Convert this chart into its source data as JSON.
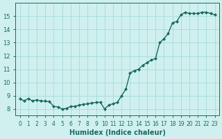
{
  "xlabel": "Humidex (Indice chaleur)",
  "ylabel": "",
  "bg_color": "#cff0ee",
  "line_color": "#1a6b5e",
  "grid_color": "#aadddd",
  "x_values": [
    0,
    0.5,
    1,
    1.5,
    2,
    2.5,
    3,
    3.5,
    4,
    4.5,
    5,
    5.5,
    6,
    6.5,
    7,
    7.5,
    8,
    8.5,
    9,
    9.5,
    10,
    10.5,
    11,
    11.5,
    12,
    12.5,
    13,
    13.5,
    14,
    14.5,
    15,
    15.5,
    16,
    16.5,
    17,
    17.5,
    18,
    18.5,
    19,
    19.5,
    20,
    20.5,
    21,
    21.5,
    22,
    22.5,
    23
  ],
  "y_values": [
    8.8,
    8.6,
    8.8,
    8.6,
    8.7,
    8.6,
    8.6,
    8.55,
    8.2,
    8.15,
    8.0,
    8.05,
    8.2,
    8.2,
    8.3,
    8.35,
    8.4,
    8.45,
    8.5,
    8.5,
    8.0,
    8.3,
    8.4,
    8.5,
    9.0,
    9.5,
    10.7,
    10.9,
    11.0,
    11.3,
    11.5,
    11.7,
    11.8,
    13.0,
    13.3,
    13.7,
    14.5,
    14.6,
    15.1,
    15.3,
    15.2,
    15.2,
    15.2,
    15.3,
    15.3,
    15.2,
    15.1
  ],
  "ylim": [
    7.5,
    16
  ],
  "xlim": [
    -0.5,
    23.5
  ],
  "yticks": [
    8,
    9,
    10,
    11,
    12,
    13,
    14,
    15
  ],
  "xticks": [
    0,
    1,
    2,
    3,
    4,
    5,
    6,
    7,
    8,
    9,
    10,
    11,
    12,
    13,
    14,
    15,
    16,
    17,
    18,
    19,
    20,
    21,
    22,
    23
  ],
  "marker": "D",
  "marker_size": 2,
  "line_width": 1.0
}
